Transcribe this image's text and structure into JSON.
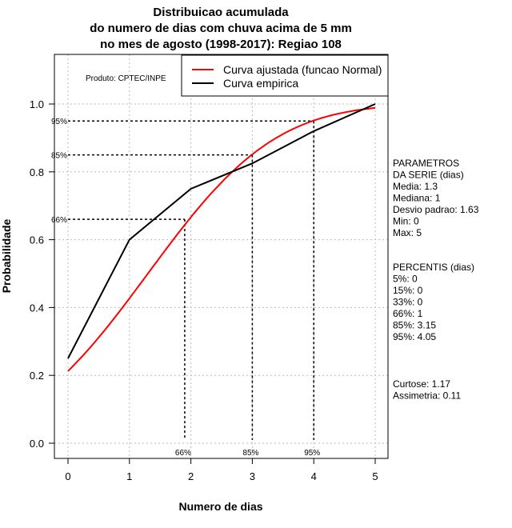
{
  "chart_data": {
    "type": "line",
    "title_lines": [
      "Distribuicao acumulada",
      "do numero de dias com chuva acima de 5 mm",
      "no mes de agosto (1998-2017): Regiao 108"
    ],
    "xlabel": "Numero de dias",
    "ylabel": "Probabilidade",
    "xlim": [
      0,
      5
    ],
    "ylim": [
      0,
      1
    ],
    "xticks": [
      "0",
      "1",
      "2",
      "3",
      "4",
      "5"
    ],
    "yticks": [
      "0.0",
      "0.2",
      "0.4",
      "0.6",
      "0.8",
      "1.0"
    ],
    "grid": true,
    "product_note": "Produto: CPTEC/INPE",
    "legend": {
      "placement": "top-right",
      "entries": [
        "Curva ajustada (funcao Normal)",
        "Curva empirica"
      ]
    },
    "series": [
      {
        "name": "Curva ajustada (funcao Normal)",
        "color": "#ff0000",
        "distribution": "normal",
        "mean": 1.3,
        "sd": 1.63,
        "x_range": [
          0,
          5
        ]
      },
      {
        "name": "Curva empirica",
        "color": "#000000",
        "x": [
          0,
          1,
          2,
          3,
          4,
          5
        ],
        "y": [
          0.25,
          0.6,
          0.75,
          0.825,
          0.92,
          1.0
        ]
      }
    ],
    "percentile_markers": [
      {
        "label": "66%",
        "x": 1.9,
        "y": 0.66
      },
      {
        "label": "85%",
        "x": 3.0,
        "y": 0.85
      },
      {
        "label": "95%",
        "x": 4.0,
        "y": 0.95
      }
    ],
    "side_text": {
      "params_lines": [
        "PARAMETROS",
        "DA SERIE (dias)",
        "  Media: 1.3",
        "  Mediana: 1",
        "  Desvio padrao: 1.63",
        "  Min: 0",
        "  Max: 5"
      ],
      "percentis_lines": [
        "PERCENTIS (dias)",
        "  5%: 0",
        "  15%: 0",
        "  33%: 0",
        "  66%: 1",
        "  85%: 3.15",
        "  95%: 4.05"
      ],
      "stats_lines": [
        "   Curtose: 1.17",
        "Assimetria: 0.11"
      ]
    }
  }
}
